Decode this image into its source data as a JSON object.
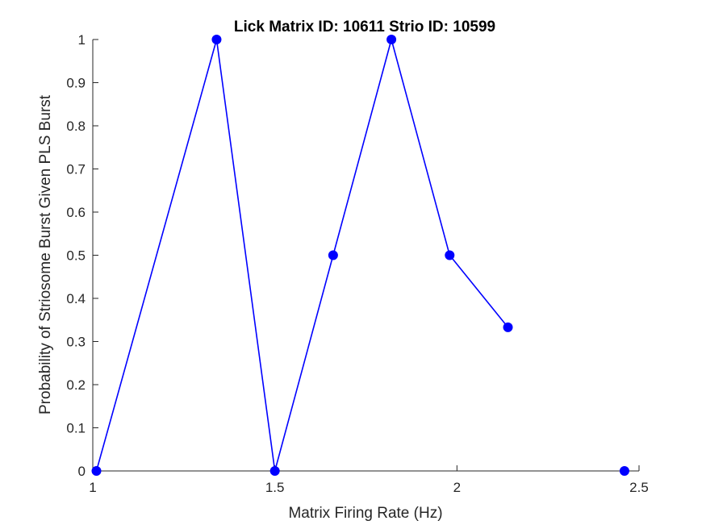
{
  "chart_data": {
    "type": "line",
    "title": "Lick Matrix ID: 10611 Strio ID: 10599",
    "xlabel": "Matrix Firing Rate (Hz)",
    "ylabel": "Probability of Striosome Burst Given PLS Burst",
    "xlim": [
      1,
      2.5
    ],
    "ylim": [
      0,
      1
    ],
    "xticks": [
      1,
      1.5,
      2,
      2.5
    ],
    "xtick_labels": [
      "1",
      "1.5",
      "2",
      "2.5"
    ],
    "yticks": [
      0,
      0.1,
      0.2,
      0.3,
      0.4,
      0.5,
      0.6,
      0.7,
      0.8,
      0.9,
      1
    ],
    "ytick_labels": [
      "0",
      "0.1",
      "0.2",
      "0.3",
      "0.4",
      "0.5",
      "0.6",
      "0.7",
      "0.8",
      "0.9",
      "1"
    ],
    "grid": false,
    "series": [
      {
        "color": "#0000ff",
        "points": [
          {
            "x": 1.01,
            "y": 0
          },
          {
            "x": 1.34,
            "y": 1
          },
          {
            "x": 1.5,
            "y": 0
          },
          {
            "x": 1.66,
            "y": 0.5
          },
          {
            "x": 1.82,
            "y": 1
          },
          {
            "x": 1.98,
            "y": 0.5
          },
          {
            "x": 2.14,
            "y": 0.333
          },
          {
            "x": null,
            "y": null
          },
          {
            "x": 2.46,
            "y": 0
          }
        ]
      }
    ]
  }
}
